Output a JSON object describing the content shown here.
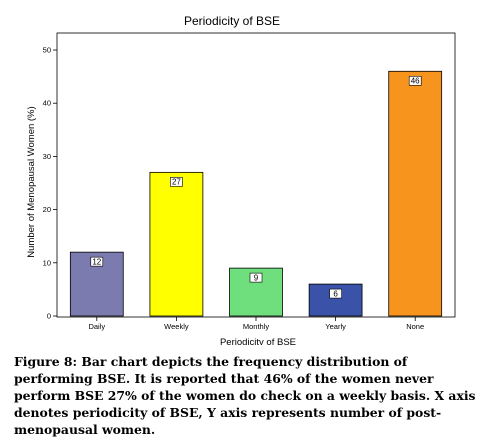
{
  "chart_data": {
    "type": "bar",
    "title": "Periodicity of BSE",
    "xlabel": "Periodicity of BSE",
    "ylabel": "Number of Menopausal Women (%)",
    "categories": [
      "Daily",
      "Weekly",
      "Monthly",
      "Yearly",
      "None"
    ],
    "values": [
      12,
      27,
      9,
      6,
      46
    ],
    "colors": [
      "#7b7bb0",
      "#ffff00",
      "#6fde7c",
      "#3a53a8",
      "#f7941d"
    ],
    "ylim": [
      0,
      50
    ],
    "yticks": [
      0,
      10,
      20,
      30,
      40,
      50
    ],
    "grid": false,
    "data_labels": true
  },
  "caption": "Figure 8: Bar chart depicts the frequency distribution of performing BSE. It is reported that 46% of the women never perform BSE 27% of the women do check on a weekly basis. X axis denotes periodicity of BSE, Y axis represents number of post-menopausal women."
}
